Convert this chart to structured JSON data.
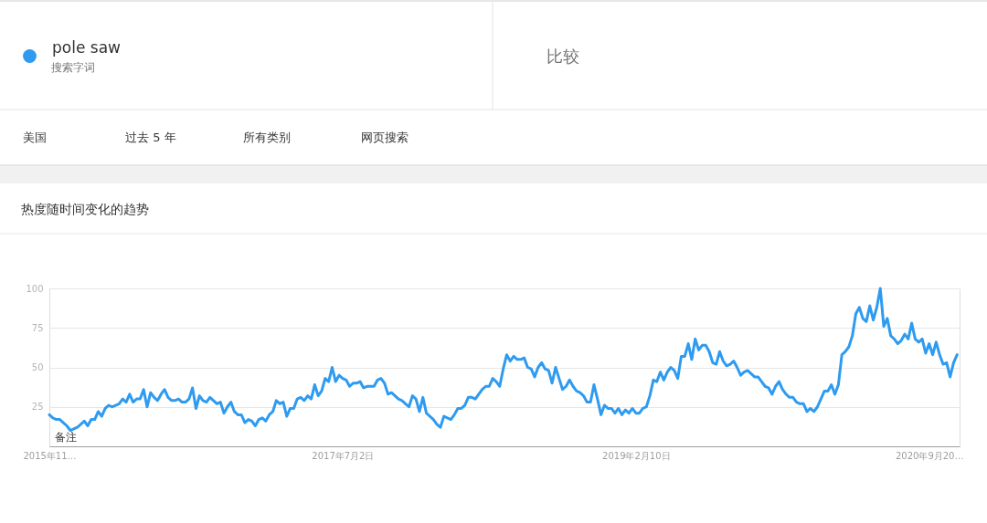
{
  "chart_data": {
    "type": "line",
    "title": "热度随时间变化的趋势",
    "annotations": [
      "搜索字词",
      "比较",
      "美国",
      "过去 5 年",
      "所有类别",
      "网页搜索",
      "备注"
    ],
    "x": [
      "2015-11-22",
      "2015-11-29",
      "2015-12-06",
      "2015-12-13",
      "2015-12-20",
      "2015-12-27",
      "2016-01-03",
      "2016-01-10",
      "2016-01-17",
      "2016-01-24",
      "2016-01-31",
      "2016-02-07",
      "2016-02-14",
      "2016-02-21",
      "2016-02-28",
      "2016-03-06",
      "2016-03-13",
      "2016-03-20",
      "2016-03-27",
      "2016-04-03",
      "2016-04-10",
      "2016-04-17",
      "2016-04-24",
      "2016-05-01",
      "2016-05-08",
      "2016-05-15",
      "2016-05-22",
      "2016-05-29",
      "2016-06-05",
      "2016-06-12",
      "2016-06-19",
      "2016-06-26",
      "2016-07-03",
      "2016-07-10",
      "2016-07-17",
      "2016-07-24",
      "2016-07-31",
      "2016-08-07",
      "2016-08-14",
      "2016-08-21",
      "2016-08-28",
      "2016-09-04",
      "2016-09-11",
      "2016-09-18",
      "2016-09-25",
      "2016-10-02",
      "2016-10-09",
      "2016-10-16",
      "2016-10-23",
      "2016-10-30",
      "2016-11-06",
      "2016-11-13",
      "2016-11-20",
      "2016-11-27",
      "2016-12-04",
      "2016-12-11",
      "2016-12-18",
      "2016-12-25",
      "2017-01-01",
      "2017-01-08",
      "2017-01-15",
      "2017-01-22",
      "2017-01-29",
      "2017-02-05",
      "2017-02-12",
      "2017-02-19",
      "2017-02-26",
      "2017-03-05",
      "2017-03-12",
      "2017-03-19",
      "2017-03-26",
      "2017-04-02",
      "2017-04-09",
      "2017-04-16",
      "2017-04-23",
      "2017-04-30",
      "2017-05-07",
      "2017-05-14",
      "2017-05-21",
      "2017-05-28",
      "2017-06-04",
      "2017-06-11",
      "2017-06-18",
      "2017-06-25",
      "2017-07-02",
      "2017-07-09",
      "2017-07-16",
      "2017-07-23",
      "2017-07-30",
      "2017-08-06",
      "2017-08-13",
      "2017-08-20",
      "2017-08-27",
      "2017-09-03",
      "2017-09-10",
      "2017-09-17",
      "2017-09-24",
      "2017-10-01",
      "2017-10-08",
      "2017-10-15",
      "2017-10-22",
      "2017-10-29",
      "2017-11-05",
      "2017-11-12",
      "2017-11-19",
      "2017-11-26",
      "2017-12-03",
      "2017-12-10",
      "2017-12-17",
      "2017-12-24",
      "2017-12-31",
      "2018-01-07",
      "2018-01-14",
      "2018-01-21",
      "2018-01-28",
      "2018-02-04",
      "2018-02-11",
      "2018-02-18",
      "2018-02-25",
      "2018-03-04",
      "2018-03-11",
      "2018-03-18",
      "2018-03-25",
      "2018-04-01",
      "2018-04-08",
      "2018-04-15",
      "2018-04-22",
      "2018-04-29",
      "2018-05-06",
      "2018-05-13",
      "2018-05-20",
      "2018-05-27",
      "2018-06-03",
      "2018-06-10",
      "2018-06-17",
      "2018-06-24",
      "2018-07-01",
      "2018-07-08",
      "2018-07-15",
      "2018-07-22",
      "2018-07-29",
      "2018-08-05",
      "2018-08-12",
      "2018-08-19",
      "2018-08-26",
      "2018-09-02",
      "2018-09-09",
      "2018-09-16",
      "2018-09-23",
      "2018-09-30",
      "2018-10-07",
      "2018-10-14",
      "2018-10-21",
      "2018-10-28",
      "2018-11-04",
      "2018-11-11",
      "2018-11-18",
      "2018-11-25",
      "2018-12-02",
      "2018-12-09",
      "2018-12-16",
      "2018-12-23",
      "2018-12-30",
      "2019-01-06",
      "2019-01-13",
      "2019-01-20",
      "2019-01-27",
      "2019-02-03",
      "2019-02-10",
      "2019-02-17",
      "2019-02-24",
      "2019-03-03",
      "2019-03-10",
      "2019-03-17",
      "2019-03-24",
      "2019-03-31",
      "2019-04-07",
      "2019-04-14",
      "2019-04-21",
      "2019-04-28",
      "2019-05-05",
      "2019-05-12",
      "2019-05-19",
      "2019-05-26",
      "2019-06-02",
      "2019-06-09",
      "2019-06-16",
      "2019-06-23",
      "2019-06-30",
      "2019-07-07",
      "2019-07-14",
      "2019-07-21",
      "2019-07-28",
      "2019-08-04",
      "2019-08-11",
      "2019-08-18",
      "2019-08-25",
      "2019-09-01",
      "2019-09-08",
      "2019-09-15",
      "2019-09-22",
      "2019-09-29",
      "2019-10-06",
      "2019-10-13",
      "2019-10-20",
      "2019-10-27",
      "2019-11-03",
      "2019-11-10",
      "2019-11-17",
      "2019-11-24",
      "2019-12-01",
      "2019-12-08",
      "2019-12-15",
      "2019-12-22",
      "2019-12-29",
      "2020-01-05",
      "2020-01-12",
      "2020-01-19",
      "2020-01-26",
      "2020-02-02",
      "2020-02-09",
      "2020-02-16",
      "2020-02-23",
      "2020-03-01",
      "2020-03-08",
      "2020-03-15",
      "2020-03-22",
      "2020-03-29",
      "2020-04-05",
      "2020-04-12",
      "2020-04-19",
      "2020-04-26",
      "2020-05-03",
      "2020-05-10",
      "2020-05-17",
      "2020-05-24",
      "2020-05-31",
      "2020-06-07",
      "2020-06-14",
      "2020-06-21",
      "2020-06-28",
      "2020-07-05",
      "2020-07-12",
      "2020-07-19",
      "2020-07-26",
      "2020-08-02",
      "2020-08-09",
      "2020-08-16",
      "2020-08-23",
      "2020-08-30",
      "2020-09-06",
      "2020-09-13",
      "2020-09-20",
      "2020-09-27",
      "2020-10-04",
      "2020-10-11",
      "2020-10-18",
      "2020-10-25",
      "2020-11-01",
      "2020-11-08",
      "2020-11-15"
    ],
    "series": [
      {
        "name": "pole saw",
        "color": "#2e9bf0",
        "values": [
          20,
          18,
          17,
          17,
          15,
          13,
          10,
          11,
          12,
          14,
          16,
          13,
          17,
          17,
          22,
          19,
          24,
          26,
          25,
          26,
          27,
          30,
          28,
          33,
          28,
          30,
          30,
          36,
          25,
          34,
          31,
          29,
          33,
          36,
          31,
          29,
          29,
          30,
          28,
          28,
          30,
          37,
          24,
          32,
          29,
          28,
          31,
          29,
          27,
          28,
          21,
          25,
          28,
          22,
          20,
          20,
          15,
          17,
          16,
          13,
          17,
          18,
          16,
          20,
          22,
          29,
          27,
          28,
          19,
          24,
          24,
          30,
          31,
          29,
          32,
          30,
          39,
          32,
          35,
          43,
          41,
          50,
          41,
          45,
          43,
          42,
          38,
          40,
          40,
          41,
          37,
          38,
          38,
          38,
          42,
          43,
          40,
          33,
          34,
          32,
          30,
          29,
          27,
          25,
          32,
          30,
          22,
          31,
          21,
          19,
          17,
          14,
          12,
          19,
          18,
          17,
          20,
          24,
          24,
          26,
          31,
          31,
          30,
          33,
          36,
          38,
          38,
          43,
          41,
          38,
          49,
          58,
          54,
          57,
          55,
          55,
          56,
          50,
          49,
          44,
          50,
          53,
          49,
          48,
          40,
          50,
          43,
          36,
          38,
          42,
          38,
          35,
          34,
          32,
          28,
          28,
          39,
          30,
          20,
          26,
          24,
          24,
          21,
          24,
          20,
          23,
          21,
          24,
          21,
          21,
          24,
          25,
          32,
          42,
          41,
          47,
          42,
          47,
          50,
          48,
          43,
          57,
          57,
          65,
          55,
          68,
          61,
          64,
          64,
          60,
          53,
          52,
          60,
          54,
          51,
          52,
          54,
          50,
          45,
          47,
          48,
          46,
          44,
          44,
          41,
          38,
          37,
          33,
          38,
          41,
          36,
          33,
          31,
          31,
          28,
          27,
          27,
          22,
          24,
          22,
          25,
          30,
          35,
          35,
          39,
          33,
          39,
          58,
          60,
          63,
          70,
          84,
          88,
          81,
          79,
          89,
          80,
          88,
          100,
          76,
          81,
          70,
          68,
          65,
          67,
          71,
          68,
          78,
          68,
          66,
          68,
          59,
          65,
          58,
          66,
          58,
          52,
          53,
          44,
          53,
          58
        ]
      }
    ],
    "xlim": [
      "2015-11-22",
      "2020-11-20"
    ],
    "xticks": [
      {
        "value": "2015-11-22",
        "label": "2015年11…"
      },
      {
        "value": "2017-07-02",
        "label": "2017年7月2日"
      },
      {
        "value": "2019-02-10",
        "label": "2019年2月10日"
      },
      {
        "value": "2020-09-20",
        "label": "2020年9月20…"
      }
    ],
    "ylim": [
      0,
      100
    ],
    "yticks": [
      25,
      50,
      75,
      100
    ],
    "grid": "y",
    "legend": "top left",
    "line_style": "solid"
  }
}
